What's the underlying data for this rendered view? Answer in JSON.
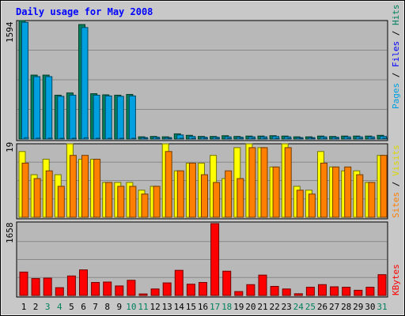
{
  "chart_data": {
    "type": "bar",
    "title": "Daily usage for May 2008",
    "days": [
      "1",
      "2",
      "3",
      "4",
      "5",
      "6",
      "7",
      "8",
      "9",
      "10",
      "11",
      "12",
      "13",
      "14",
      "15",
      "16",
      "17",
      "18",
      "19",
      "20",
      "21",
      "22",
      "23",
      "24",
      "25",
      "26",
      "27",
      "28",
      "29",
      "30",
      "31"
    ],
    "weekend_days": [
      "3",
      "4",
      "10",
      "11",
      "17",
      "18",
      "24",
      "25",
      "31"
    ],
    "panels": [
      {
        "id": "hits_files",
        "ymax_label": "1594",
        "ymax": 1594,
        "axis_labels": [
          "Pages",
          "Files",
          "Hits"
        ],
        "series": [
          {
            "name": "Hits",
            "color": "#00805c",
            "values": [
              1594,
              860,
              860,
              590,
              620,
              1540,
              610,
              595,
              590,
              600,
              30,
              35,
              30,
              70,
              50,
              35,
              35,
              45,
              35,
              40,
              40,
              45,
              40,
              30,
              30,
              40,
              35,
              40,
              40,
              40,
              50
            ]
          },
          {
            "name": "Files",
            "color": "#00a0e0",
            "values": [
              1570,
              840,
              840,
              575,
              590,
              1500,
              590,
              580,
              575,
              580,
              20,
              25,
              20,
              55,
              35,
              25,
              25,
              30,
              25,
              30,
              30,
              35,
              30,
              20,
              20,
              30,
              25,
              30,
              30,
              30,
              35
            ]
          },
          {
            "name": "Pages",
            "color": "#00a0e0",
            "values": [
              18,
              12,
              12,
              10,
              10,
              18,
              10,
              10,
              10,
              10,
              2,
              2,
              2,
              4,
              3,
              2,
              2,
              3,
              2,
              2,
              2,
              3,
              2,
              2,
              2,
              2,
              2,
              2,
              2,
              2,
              3
            ]
          }
        ]
      },
      {
        "id": "visits_sites",
        "ymax_label": "19",
        "ymax": 19,
        "axis_labels": [
          "Sites",
          "Visits"
        ],
        "series": [
          {
            "name": "Visits",
            "color": "#ffff00",
            "values": [
              17,
              11,
              15,
              11,
              19,
              15,
              15,
              9,
              9,
              9,
              7,
              8,
              19,
              12,
              14,
              14,
              16,
              10,
              18,
              19,
              18,
              13,
              19,
              8,
              7,
              17,
              13,
              12,
              12,
              9,
              16
            ]
          },
          {
            "name": "Sites",
            "color": "#ff8000",
            "values": [
              14,
              10,
              12,
              8,
              16,
              16,
              15,
              9,
              8,
              8,
              6,
              8,
              17,
              12,
              14,
              11,
              9,
              12,
              10,
              18,
              18,
              13,
              18,
              7,
              6,
              14,
              13,
              13,
              11,
              9,
              16
            ]
          }
        ]
      },
      {
        "id": "kbytes",
        "ymax_label": "1658",
        "ymax": 1658,
        "axis_labels": [
          "KBytes"
        ],
        "series": [
          {
            "name": "KBytes",
            "color": "#ff0000",
            "values": [
              540,
              390,
              400,
              180,
              450,
              590,
              300,
              310,
              220,
              350,
              35,
              150,
              290,
              580,
              260,
              300,
              1658,
              560,
              90,
              250,
              470,
              210,
              150,
              40,
              190,
              250,
              200,
              190,
              120,
              190,
              480
            ]
          }
        ]
      }
    ]
  }
}
